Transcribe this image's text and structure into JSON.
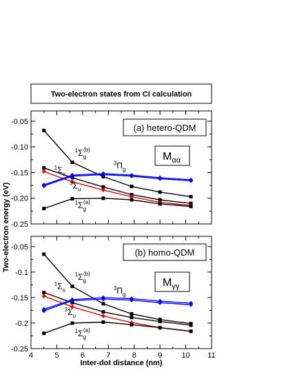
{
  "header": {
    "title": "Two-electron states from CI calculation"
  },
  "colors": {
    "black": "#000000",
    "red": "#e00000",
    "blue": "#0000ff"
  },
  "chart_data": [
    {
      "type": "line",
      "panel_label": "(a) hetero-QDM",
      "matrix_label": {
        "symbol": "M",
        "subscript": "αα"
      },
      "xlim": [
        4,
        11
      ],
      "ylim": [
        -0.25,
        -0.03
      ],
      "yticks": [
        -0.25,
        -0.2,
        -0.15,
        -0.1,
        -0.05
      ],
      "ytick_labels": [
        "-0.25",
        "-0.20",
        "-0.15",
        "-0.10",
        "-0.05"
      ],
      "x": [
        4.5,
        5.6,
        6.8,
        7.9,
        9.0,
        10.2
      ],
      "series": [
        {
          "color": "black",
          "marker": "square",
          "values": [
            -0.068,
            -0.13,
            -0.158,
            -0.177,
            -0.188,
            -0.197
          ]
        },
        {
          "color": "black",
          "marker": "square",
          "values": [
            -0.141,
            -0.16,
            -0.178,
            -0.193,
            -0.203,
            -0.21
          ]
        },
        {
          "color": "red",
          "marker": "diamond",
          "values": [
            -0.148,
            -0.168,
            -0.184,
            -0.197,
            -0.208,
            -0.214
          ]
        },
        {
          "color": "black",
          "marker": "square",
          "values": [
            -0.22,
            -0.201,
            -0.2,
            -0.203,
            -0.211,
            -0.216
          ]
        },
        {
          "color": "blue",
          "marker": "diamond",
          "values": [
            -0.176,
            -0.157,
            -0.154,
            -0.157,
            -0.162,
            -0.166
          ]
        },
        {
          "color": "blue",
          "marker": "diamond",
          "values": [
            -0.174,
            -0.155,
            -0.152,
            -0.155,
            -0.16,
            -0.164
          ]
        }
      ],
      "state_labels": [
        {
          "id": "s1gb",
          "pre": "1",
          "main": "Σ",
          "sub": "g",
          "sup": "(b)",
          "x": 5.7,
          "y": -0.117
        },
        {
          "id": "s3pg",
          "pre": "3",
          "main": "Π",
          "sub": "g",
          "sup": "",
          "x": 7.2,
          "y": -0.142
        },
        {
          "id": "s1u",
          "pre": "1",
          "main": "Σ",
          "sub": "u",
          "sup": "",
          "x": 4.9,
          "y": -0.151
        },
        {
          "id": "s3u",
          "pre": "3",
          "main": "Σ",
          "sub": "u",
          "sup": "",
          "x": 5.5,
          "y": -0.181
        },
        {
          "id": "s1ga",
          "pre": "1",
          "main": "Σ",
          "sub": "g",
          "sup": "(a)",
          "x": 5.7,
          "y": -0.219
        }
      ]
    },
    {
      "type": "line",
      "panel_label": "(b) homo-QDM",
      "matrix_label": {
        "symbol": "M",
        "subscript": "γγ"
      },
      "xlim": [
        4,
        11
      ],
      "ylim": [
        -0.25,
        -0.03
      ],
      "yticks": [
        -0.25,
        -0.2,
        -0.15,
        -0.1,
        -0.05
      ],
      "ytick_labels": [
        "-0.25",
        "-0.2",
        "-0.15",
        "-0.1",
        "-0.05"
      ],
      "xticks": [
        4,
        5,
        6,
        7,
        8,
        9,
        10,
        11
      ],
      "xtick_labels": [
        "4",
        "5",
        "6",
        "7",
        "8",
        "9",
        "10",
        "11"
      ],
      "x": [
        4.5,
        5.6,
        6.8,
        7.9,
        9.0,
        10.2
      ],
      "series": [
        {
          "color": "black",
          "marker": "square",
          "values": [
            -0.065,
            -0.128,
            -0.162,
            -0.182,
            -0.193,
            -0.201
          ]
        },
        {
          "color": "black",
          "marker": "square",
          "values": [
            -0.14,
            -0.16,
            -0.178,
            -0.189,
            -0.197,
            -0.204
          ]
        },
        {
          "color": "red",
          "marker": "diamond",
          "values": [
            -0.147,
            -0.168,
            -0.186,
            -0.199,
            -0.209,
            -0.216
          ]
        },
        {
          "color": "black",
          "marker": "square",
          "values": [
            -0.22,
            -0.2,
            -0.198,
            -0.203,
            -0.209,
            -0.216
          ]
        },
        {
          "color": "blue",
          "marker": "diamond",
          "values": [
            -0.176,
            -0.156,
            -0.153,
            -0.155,
            -0.16,
            -0.164
          ]
        },
        {
          "color": "blue",
          "marker": "diamond",
          "values": [
            -0.173,
            -0.154,
            -0.15,
            -0.152,
            -0.157,
            -0.161
          ]
        }
      ],
      "state_labels": [
        {
          "id": "s1gb",
          "pre": "1",
          "main": "Σ",
          "sub": "g",
          "sup": "(b)",
          "x": 5.7,
          "y": -0.115
        },
        {
          "id": "s3pg",
          "pre": "3",
          "main": "Π",
          "sub": "g",
          "sup": "",
          "x": 7.2,
          "y": -0.142
        },
        {
          "id": "s1u",
          "pre": "1",
          "main": "Σ",
          "sub": "u",
          "sup": "",
          "x": 4.9,
          "y": -0.133
        },
        {
          "id": "s3u",
          "pre": "3",
          "main": "Σ",
          "sub": "u",
          "sup": "",
          "x": 5.3,
          "y": -0.184
        },
        {
          "id": "s1ga",
          "pre": "1",
          "main": "Σ",
          "sub": "g",
          "sup": "(a)",
          "x": 5.7,
          "y": -0.226
        }
      ]
    }
  ],
  "axes": {
    "ylabel": "Two-electron energy (eV)",
    "xlabel": "Inter-dot distance (nm)"
  }
}
